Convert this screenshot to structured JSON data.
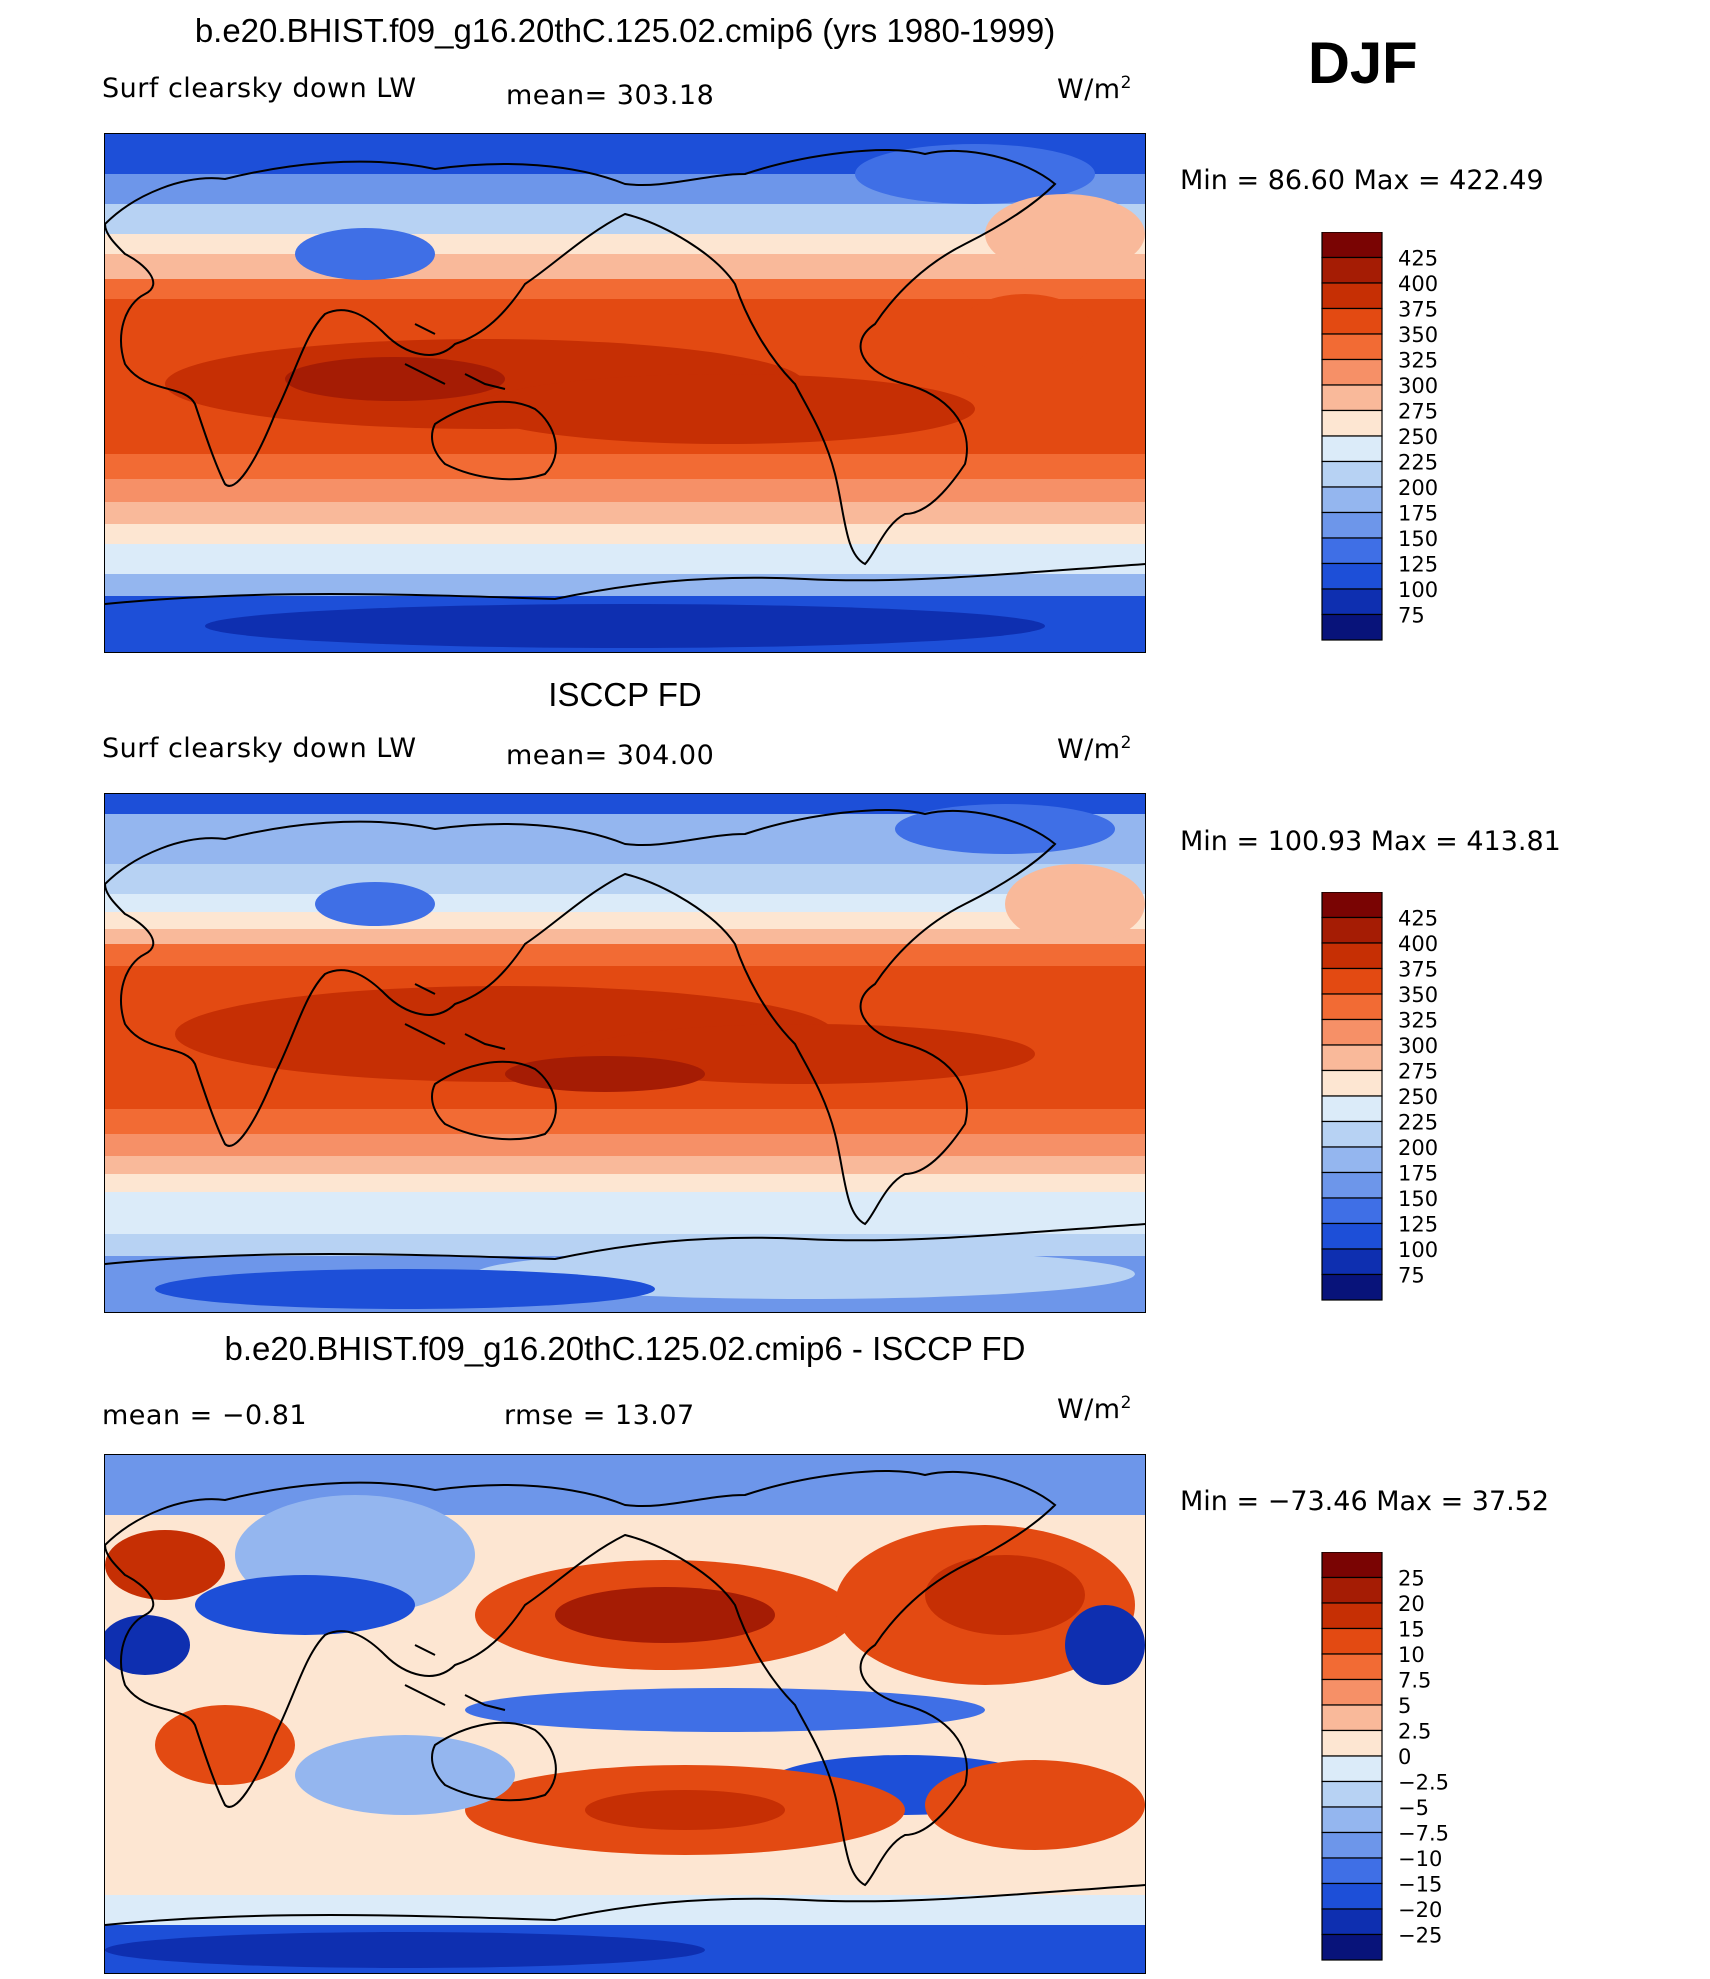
{
  "season": "DJF",
  "panels": [
    {
      "title": "b.e20.BHIST.f09_g16.20thC.125.02.cmip6 (yrs 1980-1999)",
      "left_label": "Surf clearsky down LW",
      "center_label": "mean= 303.18",
      "units_base": "W/m",
      "units_exp": "2",
      "minmax": "Min =   86.60 Max = 422.49",
      "colorbar_levels": [
        "425",
        "400",
        "375",
        "350",
        "325",
        "300",
        "275",
        "250",
        "225",
        "200",
        "175",
        "150",
        "125",
        "100",
        "75"
      ],
      "colorbar_colors": [
        "#7a0403",
        "#a51c04",
        "#c62f04",
        "#e34a12",
        "#f26b34",
        "#f69067",
        "#f9b99a",
        "#fde6d2",
        "#dbebf9",
        "#b7d2f3",
        "#94b6ef",
        "#6d96ea",
        "#3f6fe6",
        "#1d4fd8",
        "#0e2fb0",
        "#08137a"
      ]
    },
    {
      "title": "ISCCP FD",
      "left_label": "Surf clearsky down LW",
      "center_label": "mean= 304.00",
      "units_base": "W/m",
      "units_exp": "2",
      "minmax": "Min = 100.93 Max = 413.81",
      "colorbar_levels": [
        "425",
        "400",
        "375",
        "350",
        "325",
        "300",
        "275",
        "250",
        "225",
        "200",
        "175",
        "150",
        "125",
        "100",
        "75"
      ],
      "colorbar_colors": [
        "#7a0403",
        "#a51c04",
        "#c62f04",
        "#e34a12",
        "#f26b34",
        "#f69067",
        "#f9b99a",
        "#fde6d2",
        "#dbebf9",
        "#b7d2f3",
        "#94b6ef",
        "#6d96ea",
        "#3f6fe6",
        "#1d4fd8",
        "#0e2fb0",
        "#08137a"
      ]
    },
    {
      "title": "b.e20.BHIST.f09_g16.20thC.125.02.cmip6 - ISCCP FD",
      "left_label": "mean =   −0.81",
      "center_label": "rmse =   13.07",
      "units_base": "W/m",
      "units_exp": "2",
      "minmax": "Min = −73.46 Max =   37.52",
      "colorbar_levels": [
        "25",
        "20",
        "15",
        "10",
        "7.5",
        "5",
        "2.5",
        "0",
        "−2.5",
        "−5",
        "−7.5",
        "−10",
        "−15",
        "−20",
        "−25"
      ],
      "colorbar_colors": [
        "#7a0403",
        "#a51c04",
        "#c62f04",
        "#e34a12",
        "#f26b34",
        "#f69067",
        "#f9b99a",
        "#fde6d2",
        "#dbebf9",
        "#b7d2f3",
        "#94b6ef",
        "#6d96ea",
        "#3f6fe6",
        "#1d4fd8",
        "#0e2fb0",
        "#08137a"
      ]
    }
  ]
}
